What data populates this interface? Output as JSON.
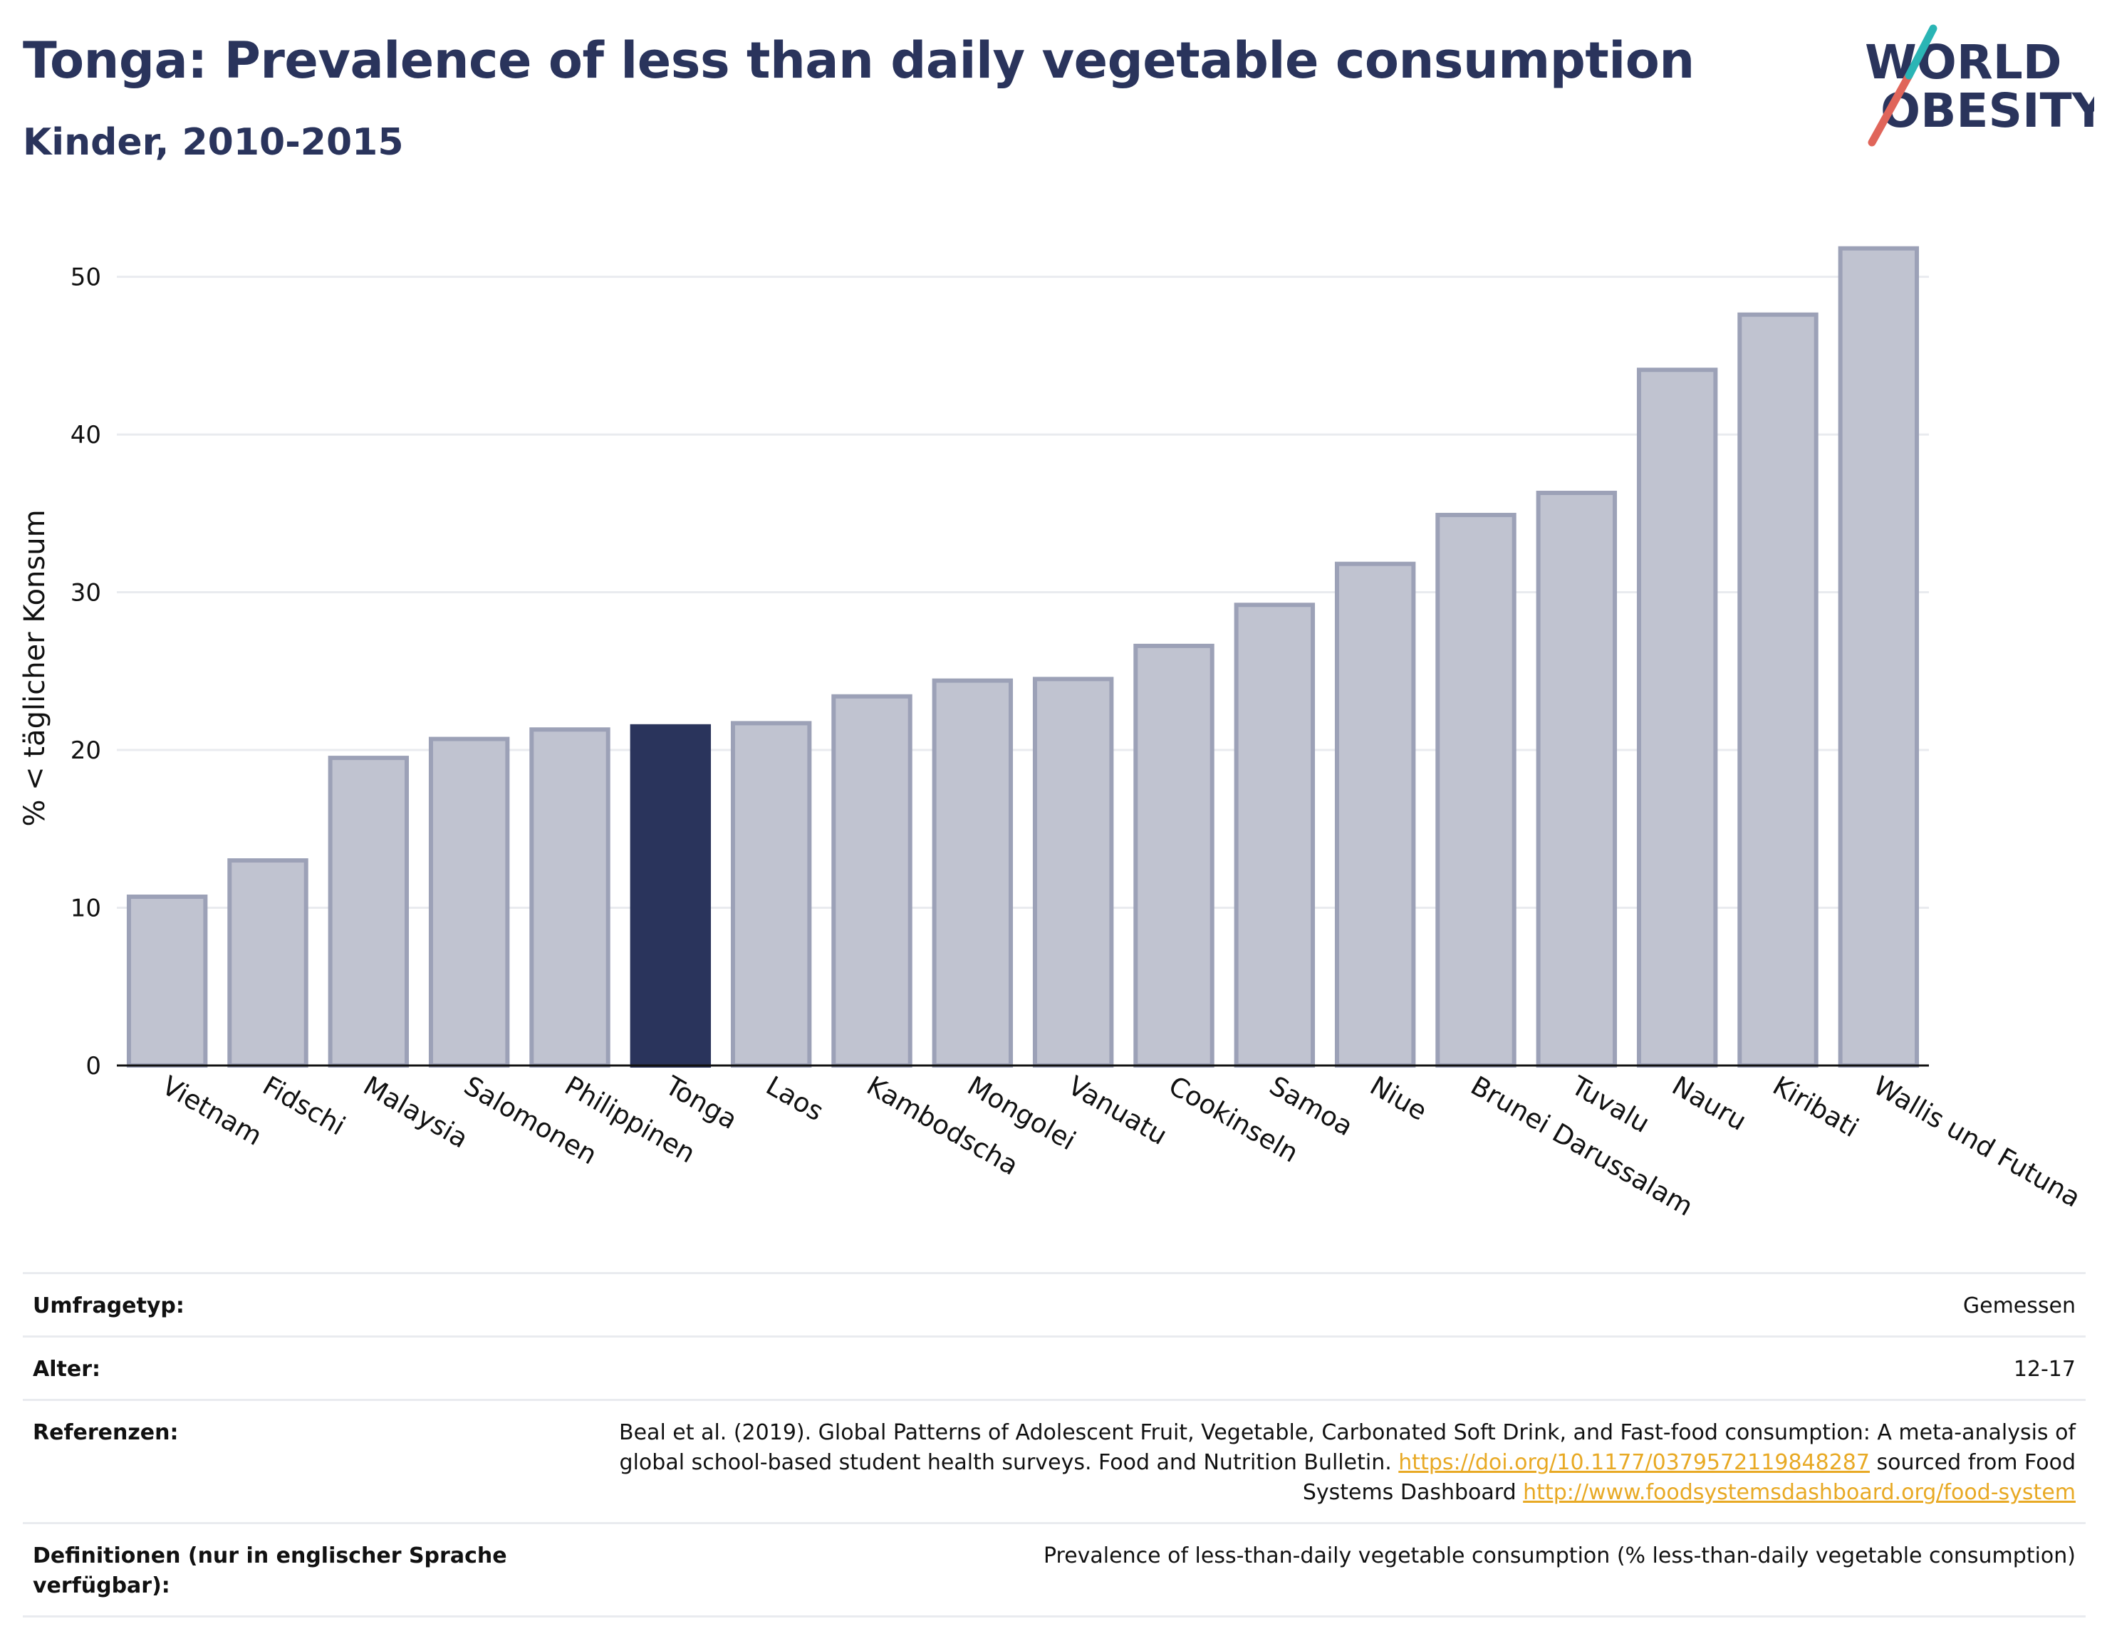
{
  "header": {
    "title": "Tonga: Prevalence of less than daily vegetable consumption",
    "subtitle": "Kinder, 2010-2015"
  },
  "logo": {
    "line1": "WORLD",
    "line2": "OBESITY",
    "colors": {
      "text": "#2a345c",
      "slash_red": "#e0655a",
      "slash_teal": "#2ab5b5"
    }
  },
  "colors": {
    "bar": "#c0c3d0",
    "bar_border": "#9ca1b7",
    "highlight": "#2a345c",
    "grid": "#e9ebef",
    "link": "#e8a924"
  },
  "chart_data": {
    "type": "bar",
    "categories": [
      "Vietnam",
      "Fidschi",
      "Malaysia",
      "Salomonen",
      "Philippinen",
      "Tonga",
      "Laos",
      "Kambodscha",
      "Mongolei",
      "Vanuatu",
      "Cookinseln",
      "Samoa",
      "Niue",
      "Brunei Darussalam",
      "Tuvalu",
      "Nauru",
      "Kiribati",
      "Wallis und Futuna"
    ],
    "values": [
      10.7,
      13.0,
      19.5,
      20.7,
      21.3,
      21.5,
      21.7,
      23.4,
      24.4,
      24.5,
      26.6,
      29.2,
      31.8,
      34.9,
      36.3,
      44.1,
      47.6,
      51.8
    ],
    "highlight": "Tonga",
    "ylabel": "% < täglicher Konsum",
    "xlabel": "",
    "ylim": [
      0,
      54
    ],
    "yticks": [
      0,
      10,
      20,
      30,
      40,
      50
    ],
    "grid": true
  },
  "meta": {
    "rows": [
      {
        "label": "Umfragetyp:",
        "value": "Gemessen"
      },
      {
        "label": "Alter:",
        "value": "12-17"
      }
    ],
    "references": {
      "label": "Referenzen:",
      "text1": "Beal et al. (2019). Global Patterns of Adolescent Fruit, Vegetable, Carbonated Soft Drink, and Fast-food consumption: A meta-analysis of global school-based student health surveys. Food and Nutrition Bulletin. ",
      "link1": "https://doi.org/10.1177/0379572119848287",
      "text2": " sourced from Food Systems Dashboard ",
      "link2": "http://www.foodsystemsdashboard.org/food-system"
    },
    "definitions": {
      "label": "Definitionen (nur in englischer Sprache verfügbar):",
      "value": "Prevalence of less-than-daily vegetable consumption (% less-than-daily vegetable consumption)"
    }
  }
}
